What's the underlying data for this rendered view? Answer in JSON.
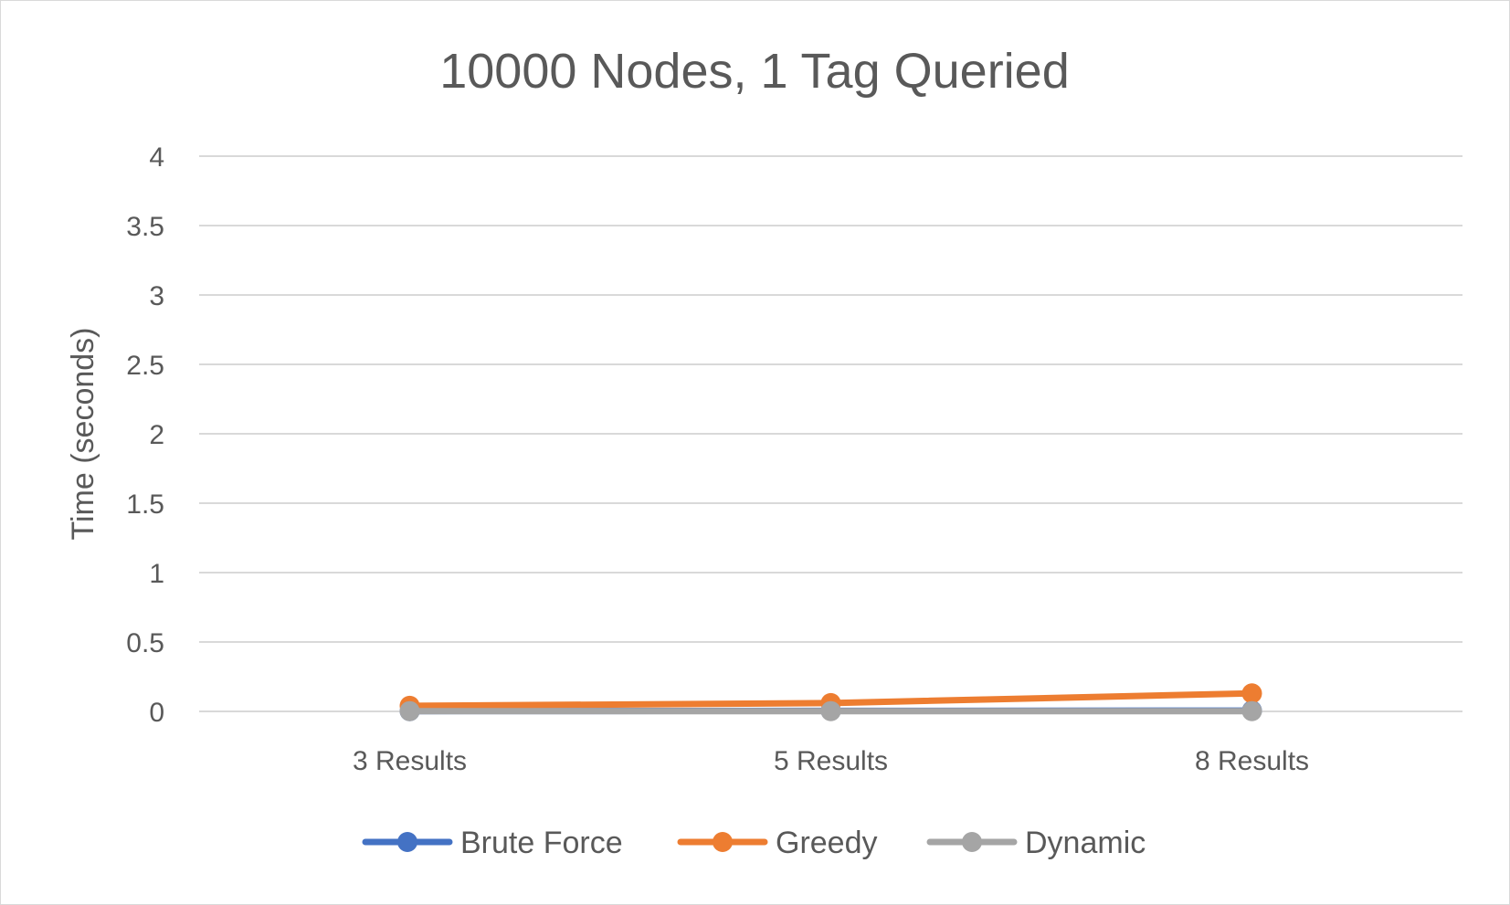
{
  "chart_data": {
    "type": "line",
    "title": "10000 Nodes, 1 Tag Queried",
    "xlabel": "",
    "ylabel": "Time (seconds)",
    "categories": [
      "3 Results",
      "5 Results",
      "8 Results"
    ],
    "ylim": [
      0,
      4
    ],
    "yticks": [
      "0",
      "0.5",
      "1",
      "1.5",
      "2",
      "2.5",
      "3",
      "3.5",
      "4"
    ],
    "grid": true,
    "legend_position": "bottom",
    "series": [
      {
        "name": "Brute Force",
        "color": "#4472c4",
        "values": [
          0.002,
          0.004,
          0.006
        ]
      },
      {
        "name": "Greedy",
        "color": "#ed7d31",
        "values": [
          0.04,
          0.06,
          0.13
        ]
      },
      {
        "name": "Dynamic",
        "color": "#a5a5a5",
        "values": [
          0.002,
          0.002,
          0.002
        ]
      }
    ]
  }
}
